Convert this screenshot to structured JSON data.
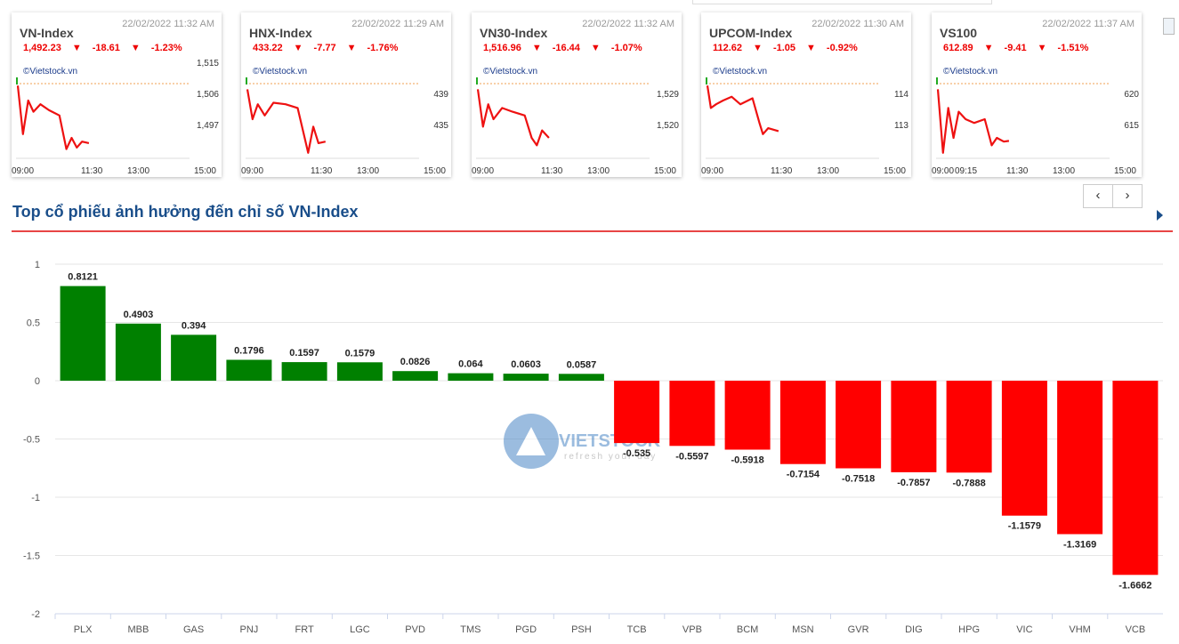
{
  "indices": [
    {
      "name": "VN-Index",
      "timestamp": "22/02/2022 11:32 AM",
      "value": "1,492.23",
      "change": "-18.61",
      "pct": "-1.23%",
      "brand": "©Vietstock.vn",
      "y_ticks": [
        "1,515",
        "1,506",
        "1,497"
      ],
      "x_ticks": [
        "09:00",
        "11:30",
        "13:00",
        "15:00"
      ]
    },
    {
      "name": "HNX-Index",
      "timestamp": "22/02/2022 11:29 AM",
      "value": "433.22",
      "change": "-7.77",
      "pct": "-1.76%",
      "brand": "©Vietstock.vn",
      "y_ticks": [
        "439",
        "435"
      ],
      "x_ticks": [
        "09:00",
        "11:30",
        "13:00",
        "15:00"
      ]
    },
    {
      "name": "VN30-Index",
      "timestamp": "22/02/2022 11:32 AM",
      "value": "1,516.96",
      "change": "-16.44",
      "pct": "-1.07%",
      "brand": "©Vietstock.vn",
      "y_ticks": [
        "1,529",
        "1,520"
      ],
      "x_ticks": [
        "09:00",
        "11:30",
        "13:00",
        "15:00"
      ]
    },
    {
      "name": "UPCOM-Index",
      "timestamp": "22/02/2022 11:30 AM",
      "value": "112.62",
      "change": "-1.05",
      "pct": "-0.92%",
      "brand": "©Vietstock.vn",
      "y_ticks": [
        "114",
        "113"
      ],
      "x_ticks": [
        "09:00",
        "11:30",
        "13:00",
        "15:00"
      ]
    },
    {
      "name": "VS100",
      "timestamp": "22/02/2022 11:37 AM",
      "value": "612.89",
      "change": "-9.41",
      "pct": "-1.51%",
      "brand": "©Vietstock.vn",
      "y_ticks": [
        "620",
        "615"
      ],
      "x_ticks": [
        "09:00",
        "09:15",
        "11:30",
        "13:00",
        "15:00"
      ]
    }
  ],
  "nav": {
    "prev": "‹",
    "next": "›"
  },
  "section": {
    "title": "Top cổ phiếu ảnh hưởng đến chỉ số VN-Index"
  },
  "colors": {
    "positive": "#008000",
    "negative": "#ff0000",
    "title": "#1a4e8a",
    "accent_line": "#e84545"
  },
  "watermark": {
    "brand": "VIETSTOCK",
    "tagline": "refresh your day"
  },
  "chart_data": {
    "type": "bar",
    "title": "",
    "xlabel": "",
    "ylabel": "",
    "ylim": [
      -2,
      1
    ],
    "y_ticks": [
      "1",
      "0.5",
      "0",
      "-0.5",
      "-1",
      "-1.5",
      "-2"
    ],
    "grid": true,
    "categories": [
      "PLX",
      "MBB",
      "GAS",
      "PNJ",
      "FRT",
      "LGC",
      "PVD",
      "TMS",
      "PGD",
      "PSH",
      "TCB",
      "VPB",
      "BCM",
      "MSN",
      "GVR",
      "DIG",
      "HPG",
      "VIC",
      "VHM",
      "VCB"
    ],
    "values": [
      0.8121,
      0.4903,
      0.394,
      0.1796,
      0.1597,
      0.1579,
      0.0826,
      0.064,
      0.0603,
      0.0587,
      -0.535,
      -0.5597,
      -0.5918,
      -0.7154,
      -0.7518,
      -0.7857,
      -0.7888,
      -1.1579,
      -1.3169,
      -1.6662
    ],
    "value_labels": [
      "0.8121",
      "0.4903",
      "0.394",
      "0.1796",
      "0.1597",
      "0.1579",
      "0.0826",
      "0.064",
      "0.0603",
      "0.0587",
      "-0.535",
      "-0.5597",
      "-0.5918",
      "-0.7154",
      "-0.7518",
      "-0.7857",
      "-0.7888",
      "-1.1579",
      "-1.3169",
      "-1.6662"
    ]
  }
}
